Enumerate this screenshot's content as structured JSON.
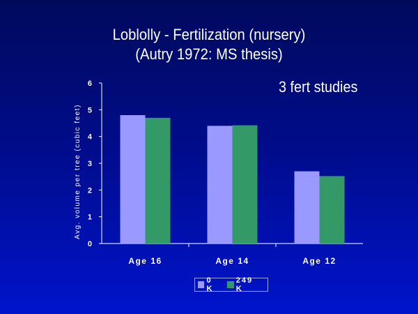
{
  "slide": {
    "title_line1": "Loblolly - Fertilization (nursery)",
    "title_line2": "(Autry 1972: MS thesis)",
    "annotation": "3 fert studies"
  },
  "chart_data": {
    "type": "bar",
    "categories": [
      "Age 16",
      "Age 14",
      "Age 12"
    ],
    "series": [
      {
        "name": "0 K",
        "values": [
          4.8,
          4.4,
          2.7
        ],
        "color": "#9999ff"
      },
      {
        "name": "249 K",
        "values": [
          4.7,
          4.42,
          2.52
        ],
        "color": "#339966"
      }
    ],
    "ylabel": "Avg. volume per tree (cubic feet)",
    "xlabel": "",
    "ylim": [
      0,
      6
    ],
    "yticks": [
      "0",
      "1",
      "2",
      "3",
      "4",
      "5",
      "6"
    ],
    "legend_position": "bottom",
    "grid": false
  }
}
